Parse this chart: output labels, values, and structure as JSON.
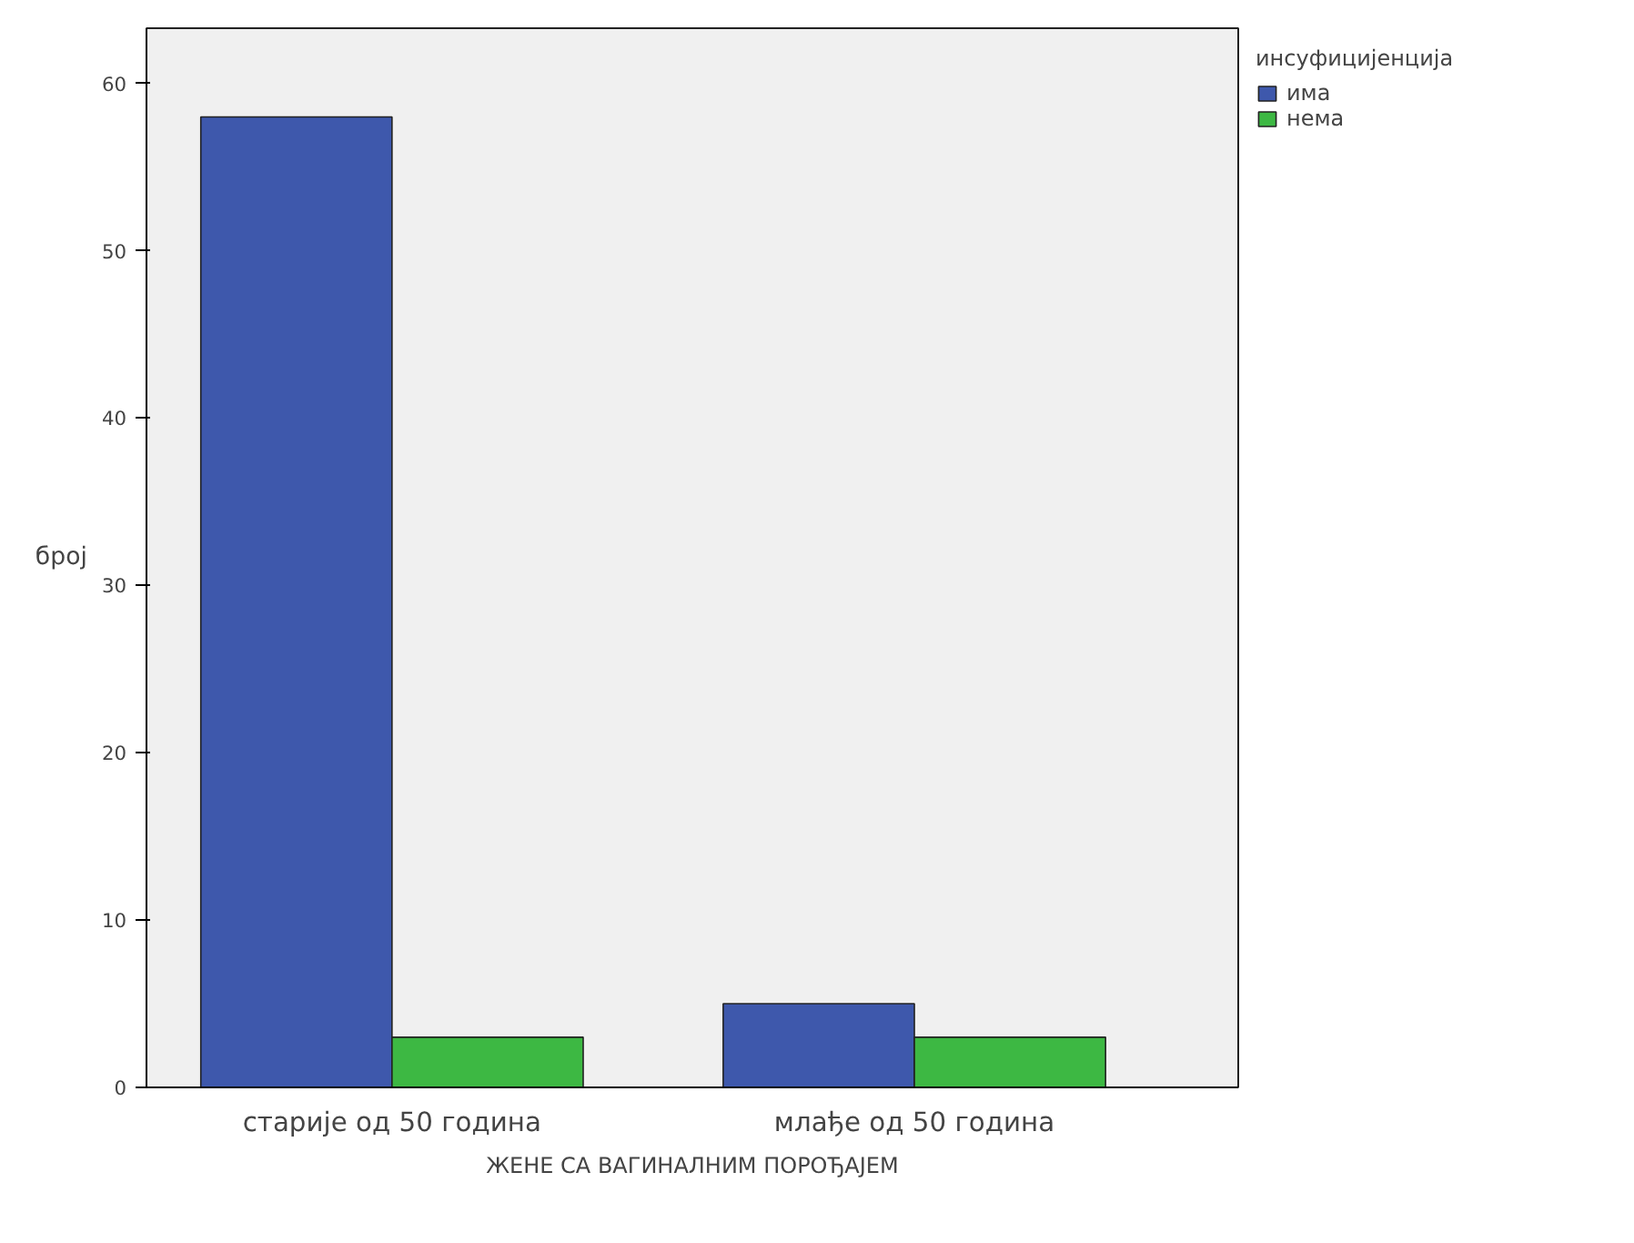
{
  "chart_data": {
    "type": "bar",
    "xlabel": "ЖЕНЕ СА ВАГИНАЛНИМ ПОРОЂАЈЕМ",
    "ylabel": "број",
    "legend_title": "инсуфицијенција",
    "categories": [
      "старије од 50 година",
      "млађе од 50 година"
    ],
    "series": [
      {
        "name": "има",
        "color": "#3e58ac",
        "values": [
          58,
          5
        ]
      },
      {
        "name": "нема",
        "color": "#3db843",
        "values": [
          3,
          3
        ]
      }
    ],
    "ylim": [
      0,
      63.3
    ],
    "yticks": [
      0,
      10,
      20,
      30,
      40,
      50,
      60
    ],
    "grid": false,
    "legend": "top right"
  }
}
